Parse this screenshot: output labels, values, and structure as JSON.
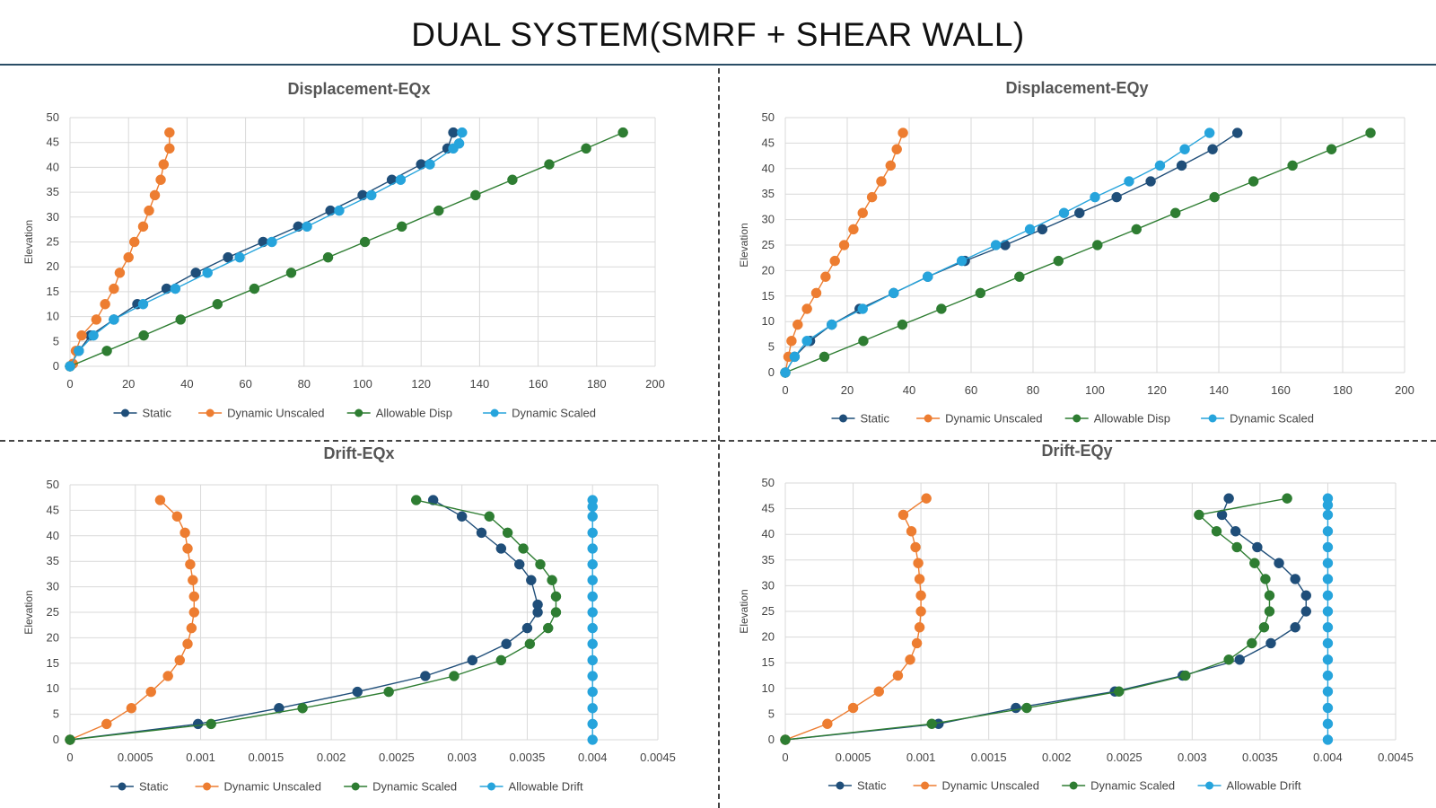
{
  "page": {
    "title": "DUAL SYSTEM(SMRF + SHEAR WALL)"
  },
  "chart_data": [
    {
      "type": "line",
      "title": "Displacement-EQx",
      "xlabel": "",
      "ylabel": "Elevation",
      "xlim": [
        0,
        200
      ],
      "ylim": [
        0,
        50
      ],
      "xticks": [
        "0",
        "20",
        "40",
        "60",
        "80",
        "100",
        "120",
        "140",
        "160",
        "180",
        "200"
      ],
      "yticks": [
        "0",
        "5",
        "10",
        "15",
        "20",
        "25",
        "30",
        "35",
        "40",
        "45",
        "50"
      ],
      "grid": true,
      "legend": "bottom",
      "series": [
        {
          "name": "Static",
          "color": "#1f4e79",
          "x": [
            0,
            3,
            7,
            15,
            23,
            33,
            43,
            54,
            66,
            78,
            89,
            100,
            110,
            120,
            129,
            131
          ],
          "y": [
            0,
            3.1,
            6.2,
            9.4,
            12.5,
            15.6,
            18.8,
            21.9,
            25,
            28.1,
            31.3,
            34.4,
            37.5,
            40.6,
            43.8,
            47
          ]
        },
        {
          "name": "Dynamic Unscaled",
          "color": "#ed7d31",
          "x": [
            0,
            1,
            2,
            4,
            9,
            12,
            15,
            17,
            20,
            22,
            25,
            27,
            29,
            31,
            32,
            34,
            34
          ],
          "y": [
            0,
            0.5,
            3.1,
            6.2,
            9.4,
            12.5,
            15.6,
            18.8,
            21.9,
            25,
            28.1,
            31.3,
            34.4,
            37.5,
            40.6,
            43.8,
            47
          ]
        },
        {
          "name": "Allowable Disp",
          "color": "#2e7d32",
          "x": [
            0,
            12.6,
            25.2,
            37.8,
            50.4,
            63,
            75.6,
            88.2,
            100.8,
            113.4,
            126,
            138.6,
            151.2,
            163.8,
            176.4,
            189
          ],
          "y": [
            0,
            3.1,
            6.2,
            9.4,
            12.5,
            15.6,
            18.8,
            21.9,
            25,
            28.1,
            31.3,
            34.4,
            37.5,
            40.6,
            43.8,
            47
          ]
        },
        {
          "name": "Dynamic Scaled",
          "color": "#26a4dc",
          "x": [
            0,
            3,
            8,
            15,
            25,
            36,
            47,
            58,
            69,
            81,
            92,
            103,
            113,
            123,
            131,
            133,
            134
          ],
          "y": [
            0,
            3.1,
            6.2,
            9.4,
            12.5,
            15.6,
            18.8,
            21.9,
            25,
            28.1,
            31.3,
            34.4,
            37.5,
            40.6,
            43.8,
            44.8,
            47
          ]
        }
      ]
    },
    {
      "type": "line",
      "title": "Displacement-EQy",
      "xlabel": "",
      "ylabel": "Elevation",
      "xlim": [
        0,
        200
      ],
      "ylim": [
        0,
        50
      ],
      "xticks": [
        "0",
        "20",
        "40",
        "60",
        "80",
        "100",
        "120",
        "140",
        "160",
        "180",
        "200"
      ],
      "yticks": [
        "0",
        "5",
        "10",
        "15",
        "20",
        "25",
        "30",
        "35",
        "40",
        "45",
        "50"
      ],
      "grid": true,
      "legend": "bottom",
      "series": [
        {
          "name": "Static",
          "color": "#1f4e79",
          "x": [
            0,
            3,
            8,
            15,
            24,
            35,
            46,
            58,
            71,
            83,
            95,
            107,
            118,
            128,
            138,
            146
          ],
          "y": [
            0,
            3.1,
            6.2,
            9.4,
            12.5,
            15.6,
            18.8,
            21.9,
            25,
            28.1,
            31.3,
            34.4,
            37.5,
            40.6,
            43.8,
            47
          ]
        },
        {
          "name": "Dynamic Unscaled",
          "color": "#ed7d31",
          "x": [
            0,
            1,
            2,
            4,
            7,
            10,
            13,
            16,
            19,
            22,
            25,
            28,
            31,
            34,
            36,
            38
          ],
          "y": [
            0,
            3.1,
            6.2,
            9.4,
            12.5,
            15.6,
            18.8,
            21.9,
            25,
            28.1,
            31.3,
            34.4,
            37.5,
            40.6,
            43.8,
            47
          ]
        },
        {
          "name": "Allowable Disp",
          "color": "#2e7d32",
          "x": [
            0,
            12.6,
            25.2,
            37.8,
            50.4,
            63,
            75.6,
            88.2,
            100.8,
            113.4,
            126,
            138.6,
            151.2,
            163.8,
            176.4,
            189
          ],
          "y": [
            0,
            3.1,
            6.2,
            9.4,
            12.5,
            15.6,
            18.8,
            21.9,
            25,
            28.1,
            31.3,
            34.4,
            37.5,
            40.6,
            43.8,
            47
          ]
        },
        {
          "name": "Dynamic Scaled",
          "color": "#26a4dc",
          "x": [
            0,
            3,
            7,
            15,
            25,
            35,
            46,
            57,
            68,
            79,
            90,
            100,
            111,
            121,
            129,
            137
          ],
          "y": [
            0,
            3.1,
            6.2,
            9.4,
            12.5,
            15.6,
            18.8,
            21.9,
            25,
            28.1,
            31.3,
            34.4,
            37.5,
            40.6,
            43.8,
            47
          ]
        }
      ]
    },
    {
      "type": "line",
      "title": "Drift-EQx",
      "xlabel": "",
      "ylabel": "Elevation",
      "xlim": [
        0,
        0.0045
      ],
      "ylim": [
        0,
        50
      ],
      "xticks": [
        "0",
        "0.0005",
        "0.001",
        "0.0015",
        "0.002",
        "0.0025",
        "0.003",
        "0.0035",
        "0.004",
        "0.0045"
      ],
      "yticks": [
        "0",
        "5",
        "10",
        "15",
        "20",
        "25",
        "30",
        "35",
        "40",
        "45",
        "50"
      ],
      "grid": true,
      "legend": "bottom",
      "series": [
        {
          "name": "Static",
          "color": "#1f4e79",
          "x": [
            0,
            0.00098,
            0.0016,
            0.0022,
            0.00272,
            0.00308,
            0.00334,
            0.0035,
            0.00358,
            0.00358,
            0.00353,
            0.00344,
            0.0033,
            0.00315,
            0.003,
            0.00278
          ],
          "y": [
            0,
            3.1,
            6.2,
            9.4,
            12.5,
            15.6,
            18.8,
            21.9,
            25,
            26.5,
            31.3,
            34.4,
            37.5,
            40.6,
            43.8,
            47
          ]
        },
        {
          "name": "Dynamic Unscaled",
          "color": "#ed7d31",
          "x": [
            0,
            0.00028,
            0.00047,
            0.00062,
            0.00075,
            0.00084,
            0.0009,
            0.00093,
            0.00095,
            0.00095,
            0.00094,
            0.00092,
            0.0009,
            0.00088,
            0.00082,
            0.00069
          ],
          "y": [
            0,
            3.1,
            6.2,
            9.4,
            12.5,
            15.6,
            18.8,
            21.9,
            25,
            28.1,
            31.3,
            34.4,
            37.5,
            40.6,
            43.8,
            47
          ]
        },
        {
          "name": "Dynamic Scaled",
          "color": "#2e7d32",
          "x": [
            0,
            0.00108,
            0.00178,
            0.00244,
            0.00294,
            0.0033,
            0.00352,
            0.00366,
            0.00372,
            0.00372,
            0.00369,
            0.0036,
            0.00347,
            0.00335,
            0.00321,
            0.00265
          ],
          "y": [
            0,
            3.1,
            6.2,
            9.4,
            12.5,
            15.6,
            18.8,
            21.9,
            25,
            28.1,
            31.3,
            34.4,
            37.5,
            40.6,
            43.8,
            47
          ]
        },
        {
          "name": "Allowable Drift",
          "color": "#26a4dc",
          "x": [
            0.004,
            0.004,
            0.004,
            0.004,
            0.004,
            0.004,
            0.004,
            0.004,
            0.004,
            0.004,
            0.004,
            0.004,
            0.004,
            0.004,
            0.004,
            0.004,
            0.004
          ],
          "y": [
            0,
            3.1,
            6.2,
            9.4,
            12.5,
            15.6,
            18.8,
            21.9,
            25,
            28.1,
            31.3,
            34.4,
            37.5,
            40.6,
            43.8,
            45.7,
            47
          ]
        }
      ]
    },
    {
      "type": "line",
      "title": "Drift-EQy",
      "xlabel": "",
      "ylabel": "Elevation",
      "xlim": [
        0,
        0.0045
      ],
      "ylim": [
        0,
        50
      ],
      "xticks": [
        "0",
        "0.0005",
        "0.001",
        "0.0015",
        "0.002",
        "0.0025",
        "0.003",
        "0.0035",
        "0.004",
        "0.0045"
      ],
      "yticks": [
        "0",
        "5",
        "10",
        "15",
        "20",
        "25",
        "30",
        "35",
        "40",
        "45",
        "50"
      ],
      "grid": true,
      "legend": "bottom",
      "series": [
        {
          "name": "Static",
          "color": "#1f4e79",
          "x": [
            0,
            0.00113,
            0.0017,
            0.00243,
            0.00293,
            0.00335,
            0.00358,
            0.00376,
            0.00384,
            0.00384,
            0.00376,
            0.00364,
            0.00348,
            0.00332,
            0.00322,
            0.00327
          ],
          "y": [
            0,
            3.1,
            6.2,
            9.4,
            12.5,
            15.6,
            18.8,
            21.9,
            25,
            28.1,
            31.3,
            34.4,
            37.5,
            40.6,
            43.8,
            47
          ]
        },
        {
          "name": "Dynamic Unscaled",
          "color": "#ed7d31",
          "x": [
            0,
            0.00031,
            0.0005,
            0.00069,
            0.00083,
            0.00092,
            0.00097,
            0.00099,
            0.001,
            0.001,
            0.00099,
            0.00098,
            0.00096,
            0.00093,
            0.00087,
            0.00104
          ],
          "y": [
            0,
            3.1,
            6.2,
            9.4,
            12.5,
            15.6,
            18.8,
            21.9,
            25,
            28.1,
            31.3,
            34.4,
            37.5,
            40.6,
            43.8,
            47
          ]
        },
        {
          "name": "Dynamic Scaled",
          "color": "#2e7d32",
          "x": [
            0,
            0.00108,
            0.00178,
            0.00246,
            0.00295,
            0.00327,
            0.00344,
            0.00353,
            0.00357,
            0.00357,
            0.00354,
            0.00346,
            0.00333,
            0.00318,
            0.00305,
            0.0037
          ],
          "y": [
            0,
            3.1,
            6.2,
            9.4,
            12.5,
            15.6,
            18.8,
            21.9,
            25,
            28.1,
            31.3,
            34.4,
            37.5,
            40.6,
            43.8,
            47
          ]
        },
        {
          "name": "Allowable Drift",
          "color": "#26a4dc",
          "x": [
            0.004,
            0.004,
            0.004,
            0.004,
            0.004,
            0.004,
            0.004,
            0.004,
            0.004,
            0.004,
            0.004,
            0.004,
            0.004,
            0.004,
            0.004,
            0.004,
            0.004
          ],
          "y": [
            0,
            3.1,
            6.2,
            9.4,
            12.5,
            15.6,
            18.8,
            21.9,
            25,
            28.1,
            31.3,
            34.4,
            37.5,
            40.6,
            43.8,
            45.7,
            47
          ]
        }
      ]
    }
  ]
}
